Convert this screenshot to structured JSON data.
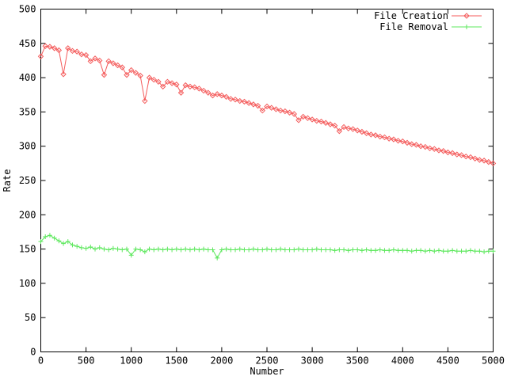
{
  "window": {
    "background": "#ffffff",
    "axis_color": "#000000",
    "text_color": "#000000"
  },
  "chart_data": {
    "type": "line",
    "title": "",
    "xlabel": "Number",
    "ylabel": "Rate",
    "xlim": [
      0,
      5000
    ],
    "ylim": [
      0,
      500
    ],
    "x_ticks": [
      0,
      500,
      1000,
      1500,
      2000,
      2500,
      3000,
      3500,
      4000,
      4500,
      5000
    ],
    "y_ticks": [
      0,
      50,
      100,
      150,
      200,
      250,
      300,
      350,
      400,
      450,
      500
    ],
    "grid": false,
    "legend_position": "top-right-inside",
    "x": [
      0,
      50,
      100,
      150,
      200,
      250,
      300,
      350,
      400,
      450,
      500,
      550,
      600,
      650,
      700,
      750,
      800,
      850,
      900,
      950,
      1000,
      1050,
      1100,
      1150,
      1200,
      1250,
      1300,
      1350,
      1400,
      1450,
      1500,
      1550,
      1600,
      1650,
      1700,
      1750,
      1800,
      1850,
      1900,
      1950,
      2000,
      2050,
      2100,
      2150,
      2200,
      2250,
      2300,
      2350,
      2400,
      2450,
      2500,
      2550,
      2600,
      2650,
      2700,
      2750,
      2800,
      2850,
      2900,
      2950,
      3000,
      3050,
      3100,
      3150,
      3200,
      3250,
      3300,
      3350,
      3400,
      3450,
      3500,
      3550,
      3600,
      3650,
      3700,
      3750,
      3800,
      3850,
      3900,
      3950,
      4000,
      4050,
      4100,
      4150,
      4200,
      4250,
      4300,
      4350,
      4400,
      4450,
      4500,
      4550,
      4600,
      4650,
      4700,
      4750,
      4800,
      4850,
      4900,
      4950,
      5000
    ],
    "series": [
      {
        "name": "File Creation",
        "color": "#f45b5b",
        "marker": "diamond",
        "values": [
          431,
          446,
          445,
          443,
          440,
          405,
          443,
          439,
          438,
          434,
          433,
          424,
          428,
          425,
          404,
          424,
          421,
          418,
          415,
          404,
          411,
          407,
          403,
          366,
          400,
          397,
          394,
          387,
          394,
          392,
          390,
          378,
          389,
          387,
          386,
          384,
          381,
          378,
          374,
          376,
          374,
          372,
          369,
          368,
          366,
          365,
          363,
          361,
          359,
          352,
          358,
          356,
          354,
          352,
          351,
          349,
          347,
          338,
          343,
          341,
          339,
          337,
          336,
          334,
          332,
          330,
          322,
          328,
          326,
          325,
          323,
          321,
          319,
          317,
          316,
          314,
          313,
          311,
          310,
          308,
          307,
          305,
          303,
          302,
          300,
          299,
          297,
          296,
          294,
          293,
          291,
          290,
          288,
          287,
          285,
          284,
          282,
          280,
          279,
          277,
          275
        ]
      },
      {
        "name": "File Removal",
        "color": "#5ee85e",
        "marker": "plus",
        "values": [
          161,
          168,
          170,
          166,
          162,
          158,
          161,
          156,
          154,
          152,
          151,
          153,
          150,
          152,
          150,
          149,
          151,
          150,
          149,
          150,
          141,
          150,
          149,
          146,
          150,
          149,
          150,
          149,
          150,
          149,
          150,
          149,
          150,
          149,
          150,
          149,
          150,
          149,
          149,
          137,
          149,
          150,
          149,
          149,
          150,
          149,
          149,
          150,
          149,
          149,
          150,
          149,
          149,
          150,
          149,
          149,
          149,
          150,
          149,
          149,
          149,
          150,
          149,
          149,
          149,
          148,
          149,
          149,
          148,
          149,
          149,
          148,
          149,
          148,
          148,
          149,
          148,
          148,
          149,
          148,
          148,
          148,
          147,
          148,
          148,
          147,
          148,
          147,
          148,
          147,
          147,
          148,
          147,
          147,
          147,
          148,
          147,
          147,
          146,
          147,
          147
        ]
      }
    ]
  }
}
